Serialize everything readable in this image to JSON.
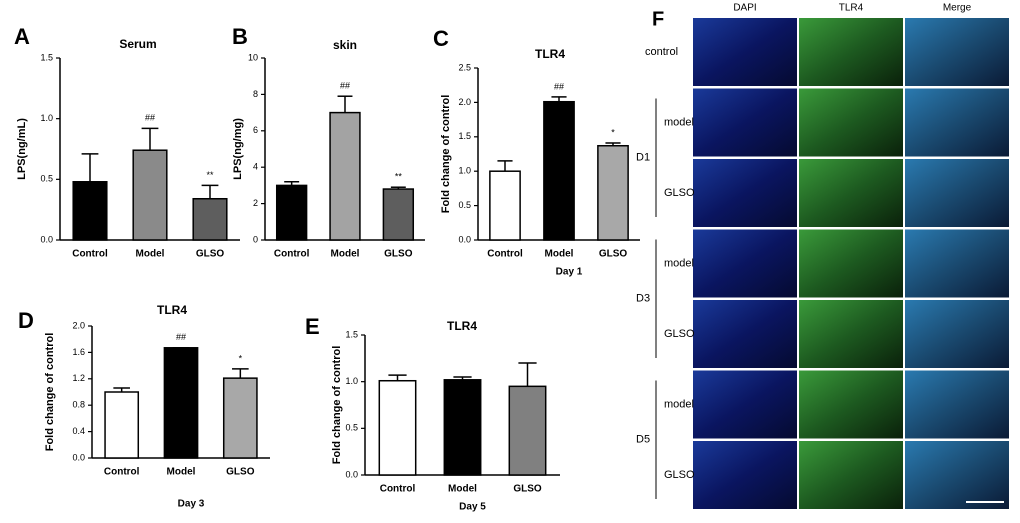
{
  "chart_data": [
    {
      "type": "bar",
      "panel": "A",
      "title": "Serum",
      "ylabel": "LPS(ng/mL)",
      "categories": [
        "Control",
        "Model",
        "GLSO"
      ],
      "values": [
        0.48,
        0.74,
        0.34
      ],
      "errors": [
        0.23,
        0.18,
        0.11
      ],
      "colors": [
        "#000000",
        "#8a8a8a",
        "#5e5e5e"
      ],
      "annotations": [
        null,
        "##",
        "**"
      ],
      "ylim": [
        0,
        1.5
      ],
      "yticks": [
        {
          "value": 0,
          "label": "0.0"
        },
        {
          "value": 0.5,
          "label": "0.5"
        },
        {
          "value": 1,
          "label": "1.0"
        },
        {
          "value": 1.5,
          "label": "1.5"
        }
      ]
    },
    {
      "type": "bar",
      "panel": "B",
      "title": "skin",
      "ylabel": "LPS(ng/mg)",
      "categories": [
        "Control",
        "Model",
        "GLSO"
      ],
      "values": [
        3.0,
        7.0,
        2.8
      ],
      "errors": [
        0.2,
        0.9,
        0.1
      ],
      "colors": [
        "#000000",
        "#a3a3a3",
        "#5e5e5e"
      ],
      "annotations": [
        null,
        "##",
        "**"
      ],
      "ylim": [
        0,
        10
      ],
      "yticks": [
        0,
        2,
        4,
        6,
        8,
        10
      ]
    },
    {
      "type": "bar",
      "panel": "C",
      "title": "TLR4",
      "ylabel": "Fold change of control",
      "xlabel": "Day 1",
      "categories": [
        "Control",
        "Model",
        "GLSO"
      ],
      "values": [
        1.0,
        2.01,
        1.37
      ],
      "errors": [
        0.15,
        0.07,
        0.04
      ],
      "colors": [
        "#ffffff",
        "#000000",
        "#a8a8a8"
      ],
      "annotations": [
        null,
        "##",
        "*"
      ],
      "ylim": [
        0,
        2.5
      ],
      "yticks": [
        {
          "value": 0,
          "label": "0.0"
        },
        {
          "value": 0.5,
          "label": "0.5"
        },
        {
          "value": 1,
          "label": "1.0"
        },
        {
          "value": 1.5,
          "label": "1.5"
        },
        {
          "value": 2,
          "label": "2.0"
        },
        {
          "value": 2.5,
          "label": "2.5"
        }
      ]
    },
    {
      "type": "bar",
      "panel": "D",
      "title": "TLR4",
      "ylabel": "Fold change of control",
      "xlabel": "Day 3",
      "categories": [
        "Control",
        "Model",
        "GLSO"
      ],
      "values": [
        1.0,
        1.67,
        1.21
      ],
      "errors": [
        0.06,
        0,
        0.14
      ],
      "colors": [
        "#ffffff",
        "#000000",
        "#a8a8a8"
      ],
      "annotations": [
        null,
        "##",
        "*"
      ],
      "ylim": [
        0,
        2.0
      ],
      "yticks": [
        {
          "value": 0,
          "label": "0.0"
        },
        {
          "value": 0.4,
          "label": "0.4"
        },
        {
          "value": 0.8,
          "label": "0.8"
        },
        {
          "value": 1.2,
          "label": "1.2"
        },
        {
          "value": 1.6,
          "label": "1.6"
        },
        {
          "value": 2,
          "label": "2.0"
        }
      ]
    },
    {
      "type": "bar",
      "panel": "E",
      "title": "TLR4",
      "ylabel": "Fold change of control",
      "xlabel": "Day 5",
      "categories": [
        "Control",
        "Model",
        "GLSO"
      ],
      "values": [
        1.01,
        1.02,
        0.95
      ],
      "errors": [
        0.06,
        0.03,
        0.25
      ],
      "colors": [
        "#ffffff",
        "#000000",
        "#808080"
      ],
      "annotations": [
        null,
        null,
        null
      ],
      "ylim": [
        0,
        1.5
      ],
      "yticks": [
        {
          "value": 0,
          "label": "0.0"
        },
        {
          "value": 0.5,
          "label": "0.5"
        },
        {
          "value": 1,
          "label": "1.0"
        },
        {
          "value": 1.5,
          "label": "1.5"
        }
      ]
    }
  ],
  "image_panel": {
    "panel": "F",
    "columns": [
      "DAPI",
      "TLR4",
      "Merge"
    ],
    "rows": [
      "control",
      "model",
      "GLSO",
      "model",
      "GLSO",
      "model",
      "GLSO"
    ],
    "days": [
      "D1",
      "D3",
      "D5"
    ]
  }
}
